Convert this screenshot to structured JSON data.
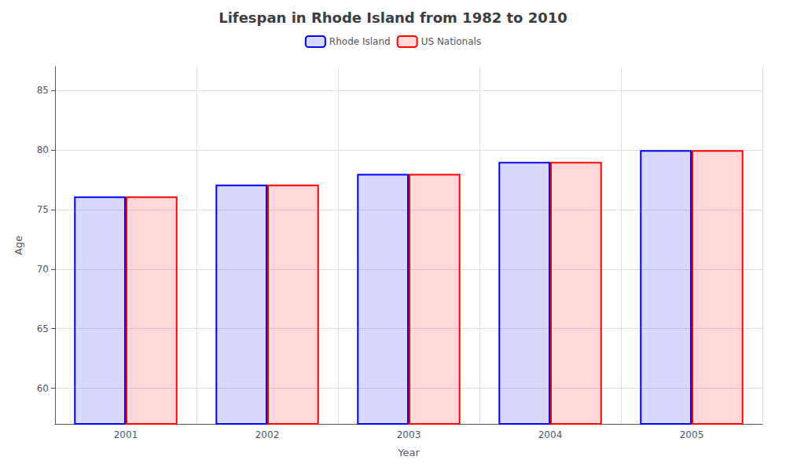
{
  "chart_data": {
    "type": "bar",
    "title": "Lifespan in Rhode Island from 1982 to 2010",
    "xlabel": "Year",
    "ylabel": "Age",
    "categories": [
      "2001",
      "2002",
      "2003",
      "2004",
      "2005"
    ],
    "series": [
      {
        "name": "Rhode Island",
        "color": "#0000ff",
        "values": [
          76.1,
          77.1,
          78.0,
          79.0,
          80.0
        ]
      },
      {
        "name": "US Nationals",
        "color": "#ff0000",
        "values": [
          76.1,
          77.1,
          78.0,
          79.0,
          80.0
        ]
      }
    ],
    "ylim": [
      57,
      87
    ],
    "yticks": [
      60,
      65,
      70,
      75,
      80,
      85
    ],
    "grid": true,
    "legend": "top"
  }
}
